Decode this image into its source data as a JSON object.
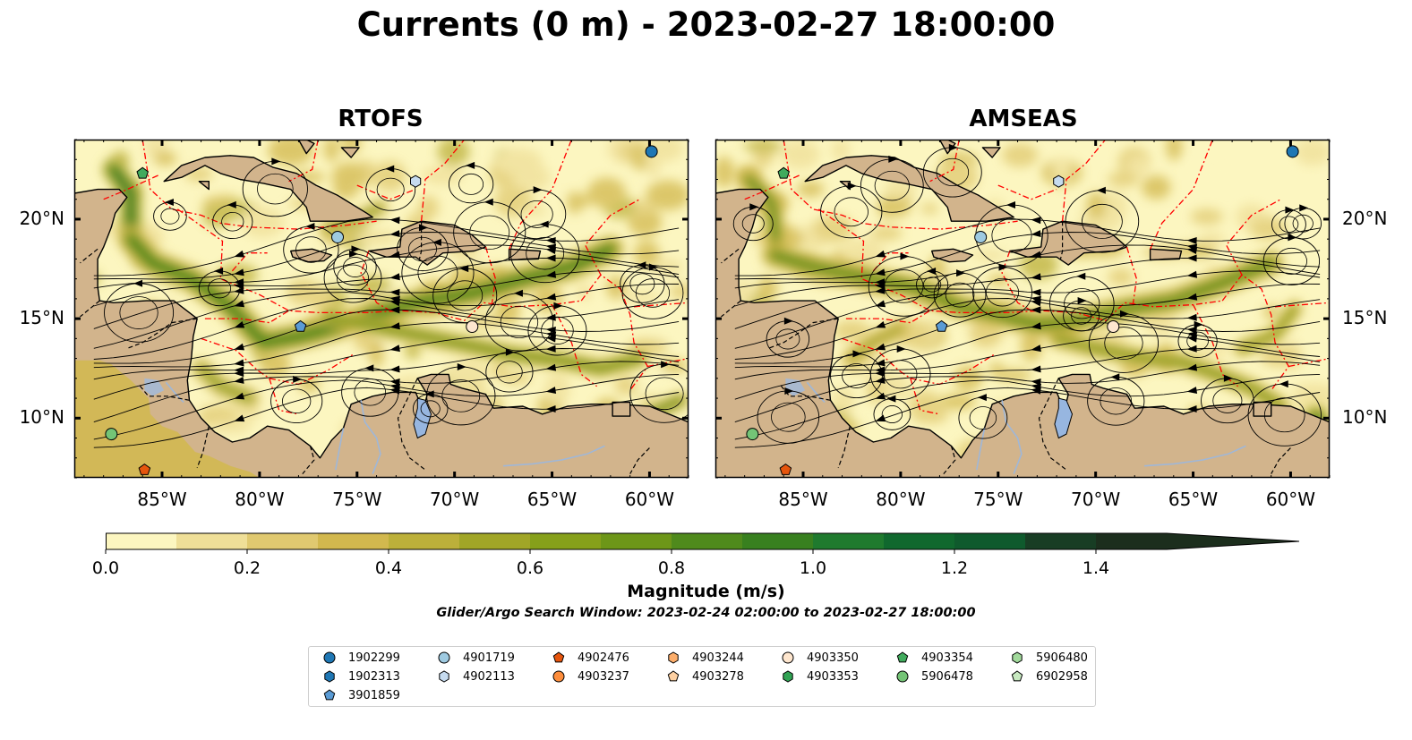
{
  "title": "Currents (0 m) - 2023-02-27 18:00:00",
  "panels": [
    {
      "title": "RTOFS",
      "latitude_labels_side": "left"
    },
    {
      "title": "AMSEAS",
      "latitude_labels_side": "right"
    }
  ],
  "map_extent": {
    "lon_min": -89.5,
    "lon_max": -58.0,
    "lat_min": 7.0,
    "lat_max": 24.0
  },
  "lon_ticks": [
    {
      "value": -85,
      "label": "85°W"
    },
    {
      "value": -80,
      "label": "80°W"
    },
    {
      "value": -75,
      "label": "75°W"
    },
    {
      "value": -70,
      "label": "70°W"
    },
    {
      "value": -65,
      "label": "65°W"
    },
    {
      "value": -60,
      "label": "60°W"
    }
  ],
  "lat_ticks": [
    {
      "value": 20,
      "label": "20°N"
    },
    {
      "value": 15,
      "label": "15°N"
    },
    {
      "value": 10,
      "label": "10°N"
    }
  ],
  "colorbar": {
    "label": "Magnitude (m/s)",
    "min": 0.0,
    "max": 1.5,
    "step": 0.1,
    "extend": "max",
    "ticks": [
      {
        "value": 0.0,
        "label": "0.0"
      },
      {
        "value": 0.2,
        "label": "0.2"
      },
      {
        "value": 0.4,
        "label": "0.4"
      },
      {
        "value": 0.6,
        "label": "0.6"
      },
      {
        "value": 0.8,
        "label": "0.8"
      },
      {
        "value": 1.0,
        "label": "1.0"
      },
      {
        "value": 1.2,
        "label": "1.2"
      },
      {
        "value": 1.4,
        "label": "1.4"
      }
    ],
    "colors": [
      "#fcf6c0",
      "#efdf98",
      "#e0c970",
      "#d2b84e",
      "#bcb03a",
      "#a1a627",
      "#86a01a",
      "#6d9618",
      "#4f8a1c",
      "#38801f",
      "#1f7a2e",
      "#10682e",
      "#0f5a2d",
      "#183d24",
      "#1c2e1d"
    ]
  },
  "window_text": "Glider/Argo Search Window: 2023-02-24 02:00:00 to 2023-02-27 18:00:00",
  "legend": [
    {
      "id": "1902299",
      "shape": "circle",
      "color": "#1f77b4"
    },
    {
      "id": "1902313",
      "shape": "hexagon",
      "color": "#1f77b4"
    },
    {
      "id": "3901859",
      "shape": "pentagon",
      "color": "#5a9bd5"
    },
    {
      "id": "4901719",
      "shape": "circle",
      "color": "#9ecae1"
    },
    {
      "id": "4902113",
      "shape": "hexagon",
      "color": "#c6dbef"
    },
    {
      "id": "4902476",
      "shape": "pentagon",
      "color": "#e6550d"
    },
    {
      "id": "4903237",
      "shape": "circle",
      "color": "#fd8d3c"
    },
    {
      "id": "4903244",
      "shape": "hexagon",
      "color": "#fdae6b"
    },
    {
      "id": "4903278",
      "shape": "pentagon",
      "color": "#fdd0a2"
    },
    {
      "id": "4903350",
      "shape": "circle",
      "color": "#fee6ce"
    },
    {
      "id": "4903353",
      "shape": "hexagon",
      "color": "#31a354"
    },
    {
      "id": "4903354",
      "shape": "pentagon",
      "color": "#41ab5d"
    },
    {
      "id": "5906478",
      "shape": "circle",
      "color": "#74c476"
    },
    {
      "id": "5906480",
      "shape": "hexagon",
      "color": "#a1d99b"
    },
    {
      "id": "6902958",
      "shape": "pentagon",
      "color": "#c7e9c0"
    }
  ],
  "floats_shown": [
    {
      "panel": "RTOFS",
      "id": "1902299",
      "lon": -59.9,
      "lat": 23.4
    },
    {
      "panel": "RTOFS",
      "id": "4902113",
      "lon": -72.0,
      "lat": 21.9
    },
    {
      "panel": "RTOFS",
      "id": "4901719",
      "lon": -76.0,
      "lat": 19.1
    },
    {
      "panel": "RTOFS",
      "id": "3901859",
      "lon": -77.9,
      "lat": 14.6
    },
    {
      "panel": "RTOFS",
      "id": "4903350",
      "lon": -69.1,
      "lat": 14.6
    },
    {
      "panel": "RTOFS",
      "id": "4903354",
      "lon": -86.0,
      "lat": 22.3
    },
    {
      "panel": "RTOFS",
      "id": "5906478",
      "lon": -87.6,
      "lat": 9.2
    },
    {
      "panel": "RTOFS",
      "id": "4902476",
      "lon": -85.9,
      "lat": 7.4
    },
    {
      "panel": "AMSEAS",
      "id": "1902299",
      "lon": -59.9,
      "lat": 23.4
    },
    {
      "panel": "AMSEAS",
      "id": "4902113",
      "lon": -71.9,
      "lat": 21.9
    },
    {
      "panel": "AMSEAS",
      "id": "4901719",
      "lon": -75.9,
      "lat": 19.1
    },
    {
      "panel": "AMSEAS",
      "id": "3901859",
      "lon": -77.9,
      "lat": 14.6
    },
    {
      "panel": "AMSEAS",
      "id": "4903350",
      "lon": -69.1,
      "lat": 14.6
    },
    {
      "panel": "AMSEAS",
      "id": "4903354",
      "lon": -86.0,
      "lat": 22.3
    },
    {
      "panel": "AMSEAS",
      "id": "5906478",
      "lon": -87.6,
      "lat": 9.2
    },
    {
      "panel": "AMSEAS",
      "id": "4902476",
      "lon": -85.9,
      "lat": 7.4
    }
  ],
  "colors": {
    "land": "#d2b48c",
    "ocean_low": "#fcf6c0",
    "eez_lines": "#ff0000",
    "borders": "#000000",
    "streamlines": "#000000",
    "amseas_nodata_ocean": "#97b6e0"
  }
}
